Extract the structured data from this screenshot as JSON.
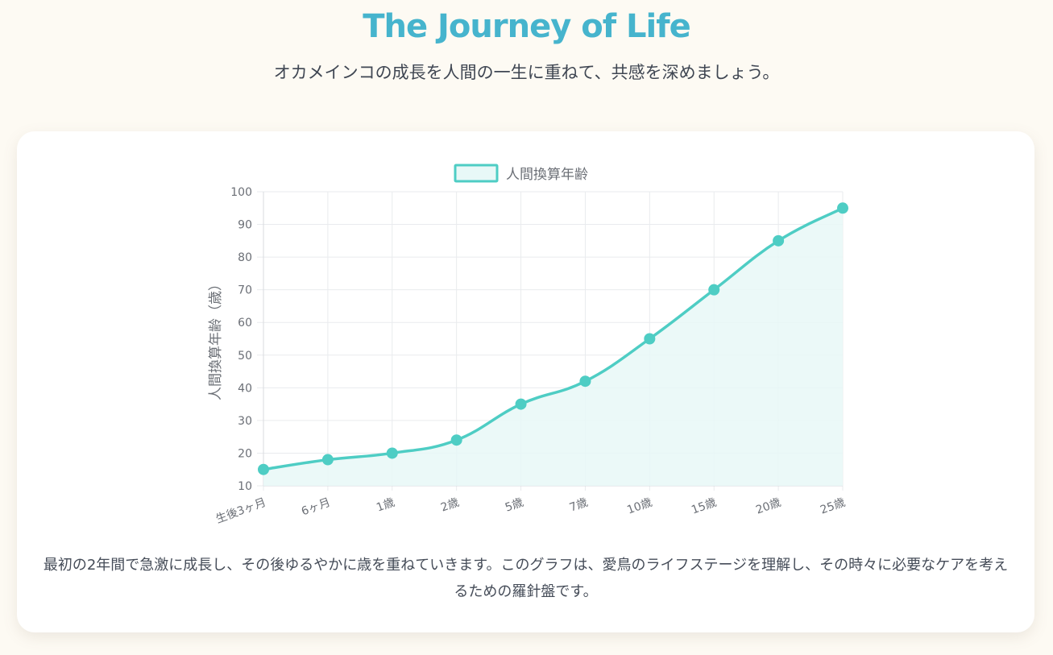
{
  "header": {
    "title": "The Journey of Life",
    "subtitle": "オカメインコの成長を人間の一生に重ねて、共感を深めましょう。"
  },
  "caption": "最初の2年間で急激に成長し、その後ゆるやかに歳を重ねていきます。このグラフは、愛鳥のライフステージを理解し、その時々に必要なケアを考えるための羅針盤です。",
  "colors": {
    "title": "#46b4cd",
    "line": "#4ecdc4",
    "fill": "#e8f8f7",
    "grid": "#e9ebee",
    "tick_text": "#6b6f76"
  },
  "chart_data": {
    "type": "line",
    "title": "",
    "categories": [
      "生後3ヶ月",
      "6ヶ月",
      "1歳",
      "2歳",
      "5歳",
      "7歳",
      "10歳",
      "15歳",
      "20歳",
      "25歳"
    ],
    "series": [
      {
        "name": "人間換算年齢",
        "values": [
          15,
          18,
          20,
          24,
          35,
          42,
          55,
          70,
          85,
          95
        ],
        "fill": true
      }
    ],
    "xlabel": "",
    "ylabel": "人間換算年齢（歳）",
    "ylim": [
      10,
      100
    ],
    "yticks": [
      10,
      20,
      30,
      40,
      50,
      60,
      70,
      80,
      90,
      100
    ],
    "grid": true,
    "legend": "top-center"
  }
}
